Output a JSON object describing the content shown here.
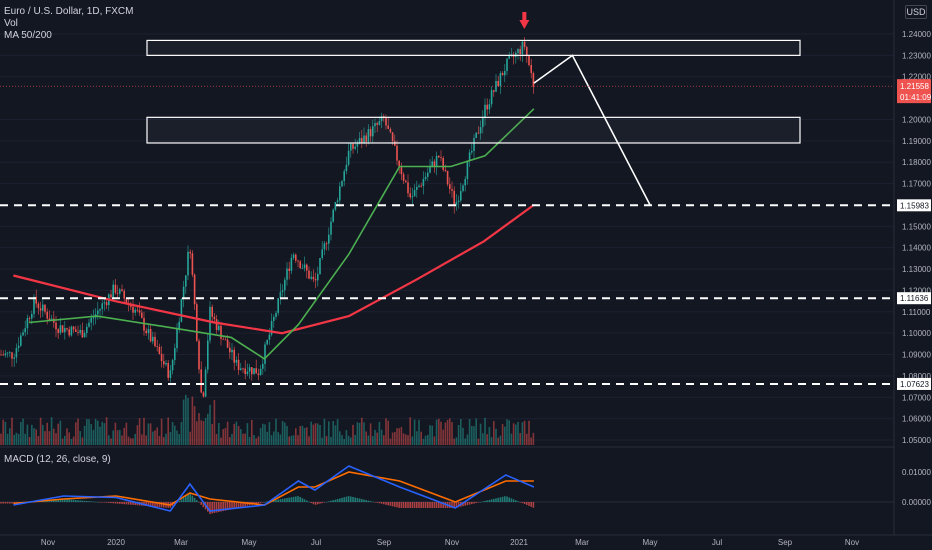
{
  "header": {
    "symbol": "Euro / U.S. Dollar, 1D, FXCM",
    "vol": "Vol",
    "ma": "MA 50/200",
    "macd": "MACD (12, 26, close, 9)",
    "currency": "USD"
  },
  "price_axis": {
    "ticks": [
      "1.24000",
      "1.23000",
      "1.22000",
      "1.20000",
      "1.19000",
      "1.18000",
      "1.17000",
      "1.15000",
      "1.14000",
      "1.13000",
      "1.12000",
      "1.11000",
      "1.10000",
      "1.09000",
      "1.08000",
      "1.07000",
      "1.06000",
      "1.05000"
    ],
    "tick_values": [
      1.24,
      1.23,
      1.22,
      1.2,
      1.19,
      1.18,
      1.17,
      1.15,
      1.14,
      1.13,
      1.12,
      1.11,
      1.1,
      1.09,
      1.08,
      1.07,
      1.06,
      1.05
    ],
    "current_price": "1.21558",
    "countdown": "01:41:09",
    "current_value": 1.2156,
    "levels": [
      {
        "label": "1.15983",
        "value": 1.15983
      },
      {
        "label": "1.11636",
        "value": 1.11636
      },
      {
        "label": "1.07623",
        "value": 1.07623
      }
    ]
  },
  "macd_axis": {
    "ticks": [
      "0.01000",
      "0.00000"
    ],
    "tick_values": [
      0.01,
      0.0
    ]
  },
  "time_axis": {
    "labels": [
      "Nov",
      "2020",
      "Mar",
      "May",
      "Jul",
      "Sep",
      "Nov",
      "2021",
      "Mar",
      "May",
      "Jul",
      "Sep",
      "Nov"
    ]
  },
  "colors": {
    "bg": "#131722",
    "up": "#26a69a",
    "down": "#ef5350",
    "ma50": "#4caf50",
    "ma200": "#f23645",
    "macd": "#2962ff",
    "signal": "#ff6d00",
    "annotation": "#ffffff",
    "arrow": "#f23645"
  },
  "chart_data": {
    "type": "candlestick",
    "symbol": "EURUSD",
    "timeframe": "1D",
    "x_range": [
      "2019-10",
      "2021-11"
    ],
    "ylim": [
      1.045,
      1.248
    ],
    "indicators": [
      "Vol",
      "MA 50",
      "MA 200",
      "MACD (12, 26, close, 9)"
    ],
    "price_path": [
      {
        "date": "2019-10-01",
        "close": 1.09
      },
      {
        "date": "2019-10-20",
        "close": 1.115
      },
      {
        "date": "2019-11-10",
        "close": 1.103
      },
      {
        "date": "2019-12-01",
        "close": 1.1
      },
      {
        "date": "2019-12-31",
        "close": 1.121
      },
      {
        "date": "2020-01-20",
        "close": 1.11
      },
      {
        "date": "2020-02-20",
        "close": 1.08
      },
      {
        "date": "2020-03-09",
        "close": 1.142
      },
      {
        "date": "2020-03-20",
        "close": 1.066
      },
      {
        "date": "2020-03-27",
        "close": 1.11
      },
      {
        "date": "2020-04-20",
        "close": 1.085
      },
      {
        "date": "2020-05-10",
        "close": 1.082
      },
      {
        "date": "2020-06-10",
        "close": 1.138
      },
      {
        "date": "2020-06-30",
        "close": 1.123
      },
      {
        "date": "2020-07-31",
        "close": 1.185
      },
      {
        "date": "2020-09-01",
        "close": 1.2
      },
      {
        "date": "2020-09-25",
        "close": 1.163
      },
      {
        "date": "2020-10-20",
        "close": 1.183
      },
      {
        "date": "2020-11-04",
        "close": 1.16
      },
      {
        "date": "2020-12-01",
        "close": 1.205
      },
      {
        "date": "2020-12-20",
        "close": 1.225
      },
      {
        "date": "2021-01-06",
        "close": 1.235
      },
      {
        "date": "2021-01-15",
        "close": 1.2156
      }
    ],
    "ma50": [
      {
        "date": "2019-10-15",
        "value": 1.105
      },
      {
        "date": "2019-12-15",
        "value": 1.108
      },
      {
        "date": "2020-02-15",
        "value": 1.103
      },
      {
        "date": "2020-04-15",
        "value": 1.098
      },
      {
        "date": "2020-05-15",
        "value": 1.088
      },
      {
        "date": "2020-06-15",
        "value": 1.104
      },
      {
        "date": "2020-07-31",
        "value": 1.137
      },
      {
        "date": "2020-09-15",
        "value": 1.178
      },
      {
        "date": "2020-10-31",
        "value": 1.178
      },
      {
        "date": "2020-12-01",
        "value": 1.183
      },
      {
        "date": "2021-01-15",
        "value": 1.205
      }
    ],
    "ma200": [
      {
        "date": "2019-10-01",
        "value": 1.127
      },
      {
        "date": "2019-12-31",
        "value": 1.115
      },
      {
        "date": "2020-03-31",
        "value": 1.105
      },
      {
        "date": "2020-05-31",
        "value": 1.1
      },
      {
        "date": "2020-07-31",
        "value": 1.108
      },
      {
        "date": "2020-09-30",
        "value": 1.125
      },
      {
        "date": "2020-11-30",
        "value": 1.143
      },
      {
        "date": "2021-01-15",
        "value": 1.16
      }
    ],
    "zones": [
      {
        "top": 1.237,
        "bottom": 1.23
      },
      {
        "top": 1.201,
        "bottom": 1.189
      }
    ],
    "projection": [
      {
        "date": "2021-01-15",
        "value": 1.217
      },
      {
        "date": "2021-02-20",
        "value": 1.23
      },
      {
        "date": "2021-05-01",
        "value": 1.16
      }
    ],
    "macd": [
      {
        "date": "2019-10-01",
        "macd": -0.001,
        "signal": -0.0005
      },
      {
        "date": "2019-11-15",
        "macd": 0.002,
        "signal": 0.001
      },
      {
        "date": "2020-01-01",
        "macd": 0.0015,
        "signal": 0.002
      },
      {
        "date": "2020-02-20",
        "macd": -0.003,
        "signal": -0.001
      },
      {
        "date": "2020-03-09",
        "macd": 0.006,
        "signal": 0.003
      },
      {
        "date": "2020-03-27",
        "macd": -0.003,
        "signal": 0.001
      },
      {
        "date": "2020-05-15",
        "macd": -0.001,
        "signal": -0.001
      },
      {
        "date": "2020-06-15",
        "macd": 0.007,
        "signal": 0.005
      },
      {
        "date": "2020-06-30",
        "macd": 0.004,
        "signal": 0.005
      },
      {
        "date": "2020-07-31",
        "macd": 0.012,
        "signal": 0.01
      },
      {
        "date": "2020-09-15",
        "macd": 0.005,
        "signal": 0.007
      },
      {
        "date": "2020-11-04",
        "macd": -0.002,
        "signal": 0.0
      },
      {
        "date": "2020-12-20",
        "macd": 0.009,
        "signal": 0.007
      },
      {
        "date": "2021-01-15",
        "macd": 0.005,
        "signal": 0.007
      }
    ]
  }
}
